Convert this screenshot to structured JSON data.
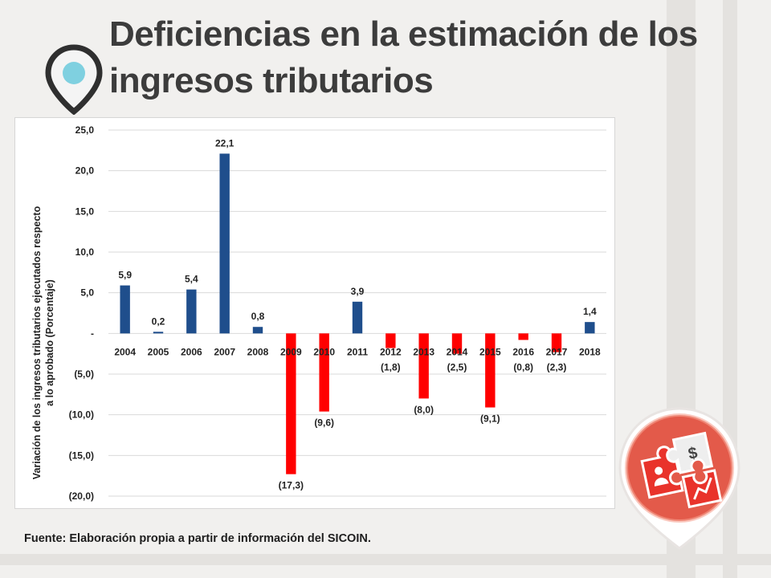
{
  "slide": {
    "title": "Deficiencias en la estimación de los ingresos tributarios",
    "source": "Fuente: Elaboración propia a partir de información del SICOIN."
  },
  "colors": {
    "positive_bar": "#1f4e8c",
    "negative_bar": "#ff0000",
    "title": "#3c3c3c",
    "pin": "#2f2f2f",
    "pin_dot": "#7fd0e0",
    "badge": "#e35a4a"
  },
  "icons": {
    "pin": "location-pin-icon",
    "badge": "puzzle-finance-icon"
  },
  "chart_data": {
    "type": "bar",
    "title": "",
    "xlabel": "",
    "ylabel_lines": [
      "Variación de los ingresos tributarios ejecutados respecto",
      "a lo aprobado (Porcentaje)"
    ],
    "categories": [
      "2004",
      "2005",
      "2006",
      "2007",
      "2008",
      "2009",
      "2010",
      "2011",
      "2012",
      "2013",
      "2014",
      "2015",
      "2016",
      "2017",
      "2018"
    ],
    "values": [
      5.9,
      0.2,
      5.4,
      22.1,
      0.8,
      -17.3,
      -9.6,
      3.9,
      -1.8,
      -8.0,
      -2.5,
      -9.1,
      -0.8,
      -2.3,
      1.4
    ],
    "data_labels": [
      "5,9",
      "0,2",
      "5,4",
      "22,1",
      "0,8",
      "(17,3)",
      "(9,6)",
      "3,9",
      "(1,8)",
      "(8,0)",
      "(2,5)",
      "(9,1)",
      "(0,8)",
      "(2,3)",
      "1,4"
    ],
    "ylim": [
      -20,
      25
    ],
    "yticks": [
      25,
      20,
      15,
      10,
      5,
      0,
      -5,
      -10,
      -15,
      -20
    ],
    "ytick_labels": [
      "25,0",
      "20,0",
      "15,0",
      "10,0",
      "5,0",
      "-",
      "(5,0)",
      "(10,0)",
      "(15,0)",
      "(20,0)"
    ],
    "grid": true,
    "legend": "none"
  }
}
